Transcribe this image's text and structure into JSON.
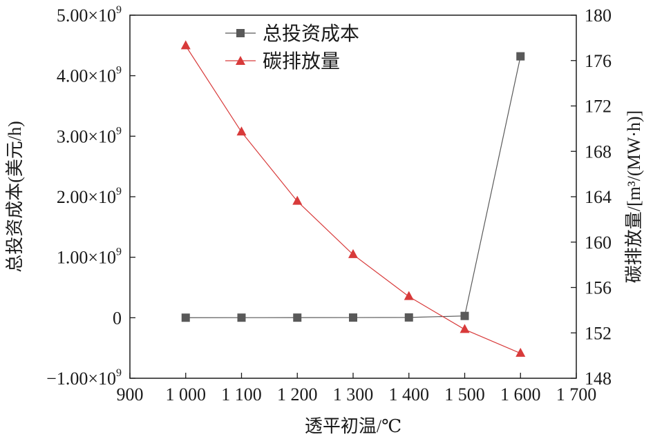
{
  "chart_data": {
    "type": "line",
    "xlabel": "透平初温/℃",
    "ylabel_left": "总投资成本(美元/h)",
    "ylabel_right": "碳排放量/[m³/(MW·h)]",
    "x": [
      1000,
      1100,
      1200,
      1300,
      1400,
      1500,
      1600
    ],
    "xlim": [
      900,
      1700
    ],
    "x_ticks": [
      900,
      1000,
      1100,
      1200,
      1300,
      1400,
      1500,
      1600,
      1700
    ],
    "x_tick_labels": [
      "900",
      "1 000",
      "1 100",
      "1 200",
      "1 300",
      "1 400",
      "1 500",
      "1 600",
      "1 700"
    ],
    "ylim_left": [
      -1000000000.0,
      5000000000.0
    ],
    "y_left_ticks": [
      -1000000000.0,
      0,
      1000000000.0,
      2000000000.0,
      3000000000.0,
      4000000000.0,
      5000000000.0
    ],
    "y_left_tick_labels": [
      {
        "mant": "−1.00×10",
        "exp": "9"
      },
      {
        "mant": "0",
        "exp": ""
      },
      {
        "mant": "1.00×10",
        "exp": "9"
      },
      {
        "mant": "2.00×10",
        "exp": "9"
      },
      {
        "mant": "3.00×10",
        "exp": "9"
      },
      {
        "mant": "4.00×10",
        "exp": "9"
      },
      {
        "mant": "5.00×10",
        "exp": "9"
      }
    ],
    "ylim_right": [
      148,
      180
    ],
    "y_right_ticks": [
      148,
      152,
      156,
      160,
      164,
      168,
      172,
      176,
      180
    ],
    "y_right_tick_labels": [
      "148",
      "152",
      "156",
      "160",
      "164",
      "168",
      "172",
      "176",
      "180"
    ],
    "legend_position": "top-center",
    "series": [
      {
        "name": "总投资成本",
        "axis": "left",
        "marker": "square",
        "color": "#595959",
        "values": [
          1000000.0,
          1500000.0,
          2000000.0,
          3000000.0,
          5000000.0,
          30000000.0,
          4320000000.0
        ]
      },
      {
        "name": "碳排放量",
        "axis": "right",
        "marker": "triangle",
        "color": "#d83a3a",
        "values": [
          177.3,
          169.7,
          163.6,
          158.9,
          155.2,
          152.3,
          150.2
        ]
      }
    ]
  }
}
